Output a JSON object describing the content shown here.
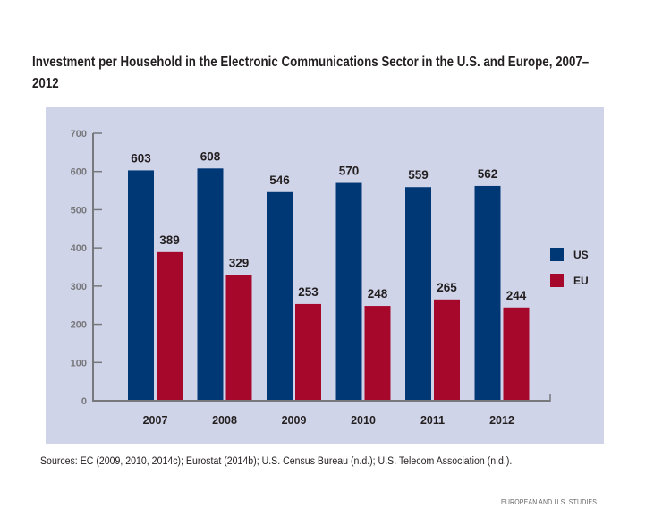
{
  "chart_data": {
    "type": "bar",
    "title": "Investment per Household in the Electronic Communications Sector in the U.S. and Europe, 2007–2012",
    "xlabel": "",
    "ylabel": "",
    "categories": [
      "2007",
      "2008",
      "2009",
      "2010",
      "2011",
      "2012"
    ],
    "series": [
      {
        "name": "US",
        "color": "#003876",
        "values": [
          603,
          608,
          546,
          570,
          559,
          562
        ]
      },
      {
        "name": "EU",
        "color": "#a6082b",
        "values": [
          389,
          329,
          253,
          248,
          265,
          244
        ]
      }
    ],
    "ylim": [
      0,
      700
    ],
    "yticks": [
      0,
      100,
      200,
      300,
      400,
      500,
      600,
      700
    ],
    "grid": false,
    "data_labels": true,
    "legend_position": "right",
    "background": "#d0d4e8"
  },
  "sources": "Sources:  EC (2009, 2010, 2014c); Eurostat (2014b); U.S. Census Bureau (n.d.); U.S. Telecom Association (n.d.).",
  "footer": "EUROPEAN AND U.S. STUDIES"
}
